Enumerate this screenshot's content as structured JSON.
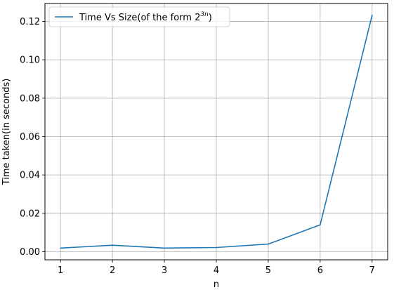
{
  "chart_data": {
    "type": "line",
    "x": [
      1,
      2,
      3,
      4,
      5,
      6,
      7
    ],
    "series": [
      {
        "name": "Time Vs Size(of the form 2",
        "name_sup": "3n",
        "name_close": ")",
        "color": "#1f77b4",
        "values": [
          0.0019,
          0.0034,
          0.0019,
          0.0022,
          0.004,
          0.014,
          0.1232
        ]
      }
    ],
    "xlabel": "n",
    "ylabel": "Time taken(in seconds)",
    "xticks": [
      "1",
      "2",
      "3",
      "4",
      "5",
      "6",
      "7"
    ],
    "yticks": [
      "0.00",
      "0.02",
      "0.04",
      "0.06",
      "0.08",
      "0.10",
      "0.12"
    ],
    "xlim": [
      0.7,
      7.3
    ],
    "ylim": [
      -0.0042,
      0.1293
    ],
    "grid": true,
    "legend_position": "upper-left"
  }
}
